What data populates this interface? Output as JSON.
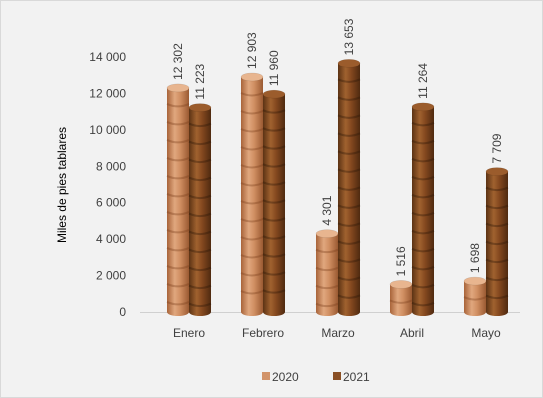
{
  "chart_data": {
    "type": "bar",
    "ylabel": "Miles de pies tablares",
    "ylim": [
      0,
      14000
    ],
    "yticks": [
      0,
      2000,
      4000,
      6000,
      8000,
      10000,
      12000,
      14000
    ],
    "ytick_labels": [
      "0",
      "2 000",
      "4 000",
      "6 000",
      "8 000",
      "10 000",
      "12 000",
      "14 000"
    ],
    "categories": [
      "Enero",
      "Febrero",
      "Marzo",
      "Abril",
      "Mayo"
    ],
    "series": [
      {
        "name": "2020",
        "values": [
          12302,
          12903,
          4301,
          1516,
          1698
        ],
        "labels": [
          "12 302",
          "12 903",
          "4 301",
          "1 516",
          "1 698"
        ],
        "color": "#d2946a"
      },
      {
        "name": "2021",
        "values": [
          11223,
          11960,
          13653,
          11264,
          7709
        ],
        "labels": [
          "11 223",
          "11 960",
          "13 653",
          "11 264",
          "7 709"
        ],
        "color": "#8a5025"
      }
    ],
    "grid": false,
    "legend": "bottom"
  }
}
